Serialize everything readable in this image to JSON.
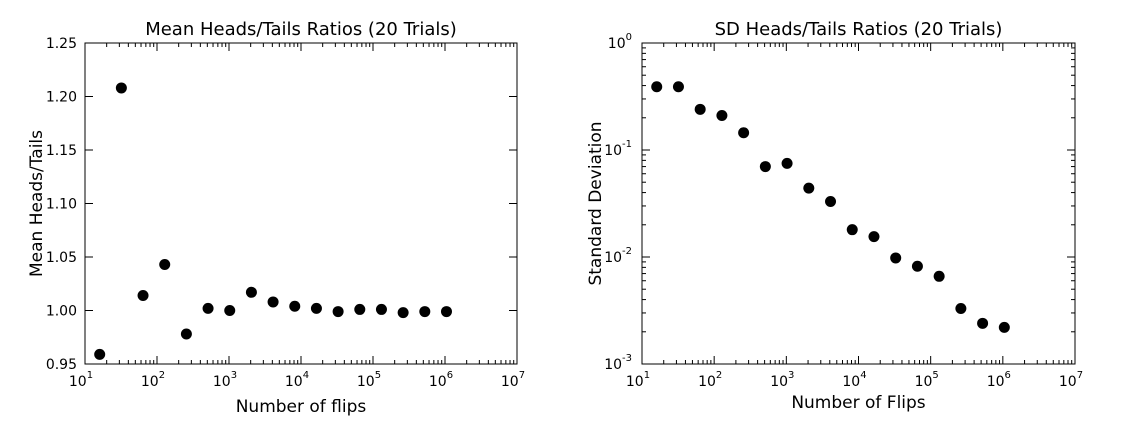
{
  "chart_data": [
    {
      "type": "scatter",
      "title": "Mean Heads/Tails Ratios (20 Trials)",
      "xlabel": "Number of flips",
      "ylabel": "Mean Heads/Tails",
      "xscale": "log",
      "yscale": "linear",
      "xlim": [
        10,
        10000000
      ],
      "ylim": [
        0.95,
        1.25
      ],
      "xticks": [
        10,
        100,
        1000,
        10000,
        100000,
        1000000,
        10000000
      ],
      "yticks": [
        0.95,
        1.0,
        1.05,
        1.1,
        1.15,
        1.2,
        1.25
      ],
      "ytick_labels": [
        "0.95",
        "1.00",
        "1.05",
        "1.10",
        "1.15",
        "1.20",
        "1.25"
      ],
      "grid": false,
      "marker_color": "#000000",
      "x": [
        16,
        32,
        64,
        128,
        256,
        512,
        1024,
        2048,
        4096,
        8192,
        16384,
        32768,
        65536,
        131072,
        262144,
        524288,
        1048576
      ],
      "y": [
        0.959,
        1.208,
        1.014,
        1.043,
        0.978,
        1.002,
        1.0,
        1.017,
        1.008,
        1.004,
        1.002,
        0.999,
        1.001,
        1.001,
        0.998,
        0.999,
        0.999
      ]
    },
    {
      "type": "scatter",
      "title": "SD Heads/Tails Ratios (20 Trials)",
      "xlabel": "Number of Flips",
      "ylabel": "Standard Deviation",
      "xscale": "log",
      "yscale": "log",
      "xlim": [
        10,
        10000000
      ],
      "ylim": [
        0.001,
        1
      ],
      "xticks": [
        10,
        100,
        1000,
        10000,
        100000,
        1000000,
        10000000
      ],
      "yticks": [
        0.001,
        0.01,
        0.1,
        1
      ],
      "grid": false,
      "marker_color": "#000000",
      "x": [
        16,
        32,
        64,
        128,
        256,
        512,
        1024,
        2048,
        4096,
        8192,
        16384,
        32768,
        65536,
        131072,
        262144,
        524288,
        1048576
      ],
      "y": [
        0.39,
        0.39,
        0.24,
        0.21,
        0.145,
        0.07,
        0.075,
        0.044,
        0.033,
        0.018,
        0.0155,
        0.0098,
        0.0082,
        0.0066,
        0.0033,
        0.0024,
        0.0022
      ]
    }
  ]
}
